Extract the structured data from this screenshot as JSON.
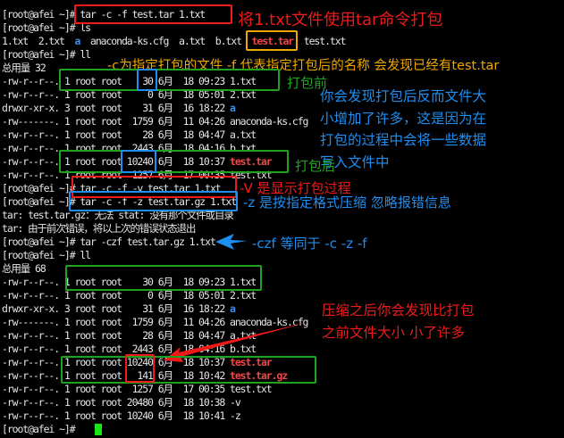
{
  "colors": {
    "background": "#000000",
    "text": "#e6e6e6",
    "directory": "#3d8ee8",
    "archive": "#f04848",
    "cursor": "#19e619",
    "annotation_red": "#f01a1a",
    "annotation_orange": "#f0a800",
    "annotation_green": "#1fa31f",
    "annotation_blue": "#1e8ef0"
  },
  "terminal": {
    "lines": [
      [
        {
          "t": "[root@afei ~]# tar -c -f test.tar 1.txt",
          "c": ""
        }
      ],
      [
        {
          "t": "[root@afei ~]# ls",
          "c": ""
        }
      ],
      [
        {
          "t": "1.txt  2.txt  ",
          "c": ""
        },
        {
          "t": "a",
          "c": "dir"
        },
        {
          "t": "  anaconda-ks.cfg  a.txt  b.txt  ",
          "c": ""
        },
        {
          "t": "test.tar",
          "c": "archive"
        },
        {
          "t": "  test.txt",
          "c": ""
        }
      ],
      [
        {
          "t": "[root@afei ~]# ll",
          "c": ""
        }
      ],
      [
        {
          "t": "总用量 32",
          "c": ""
        }
      ],
      [
        {
          "t": "-rw-r--r--. 1 root root    30 6月  18 09:23 1.txt",
          "c": ""
        }
      ],
      [
        {
          "t": "-rw-r--r--. 1 root root     0 6月  18 05:01 2.txt",
          "c": ""
        }
      ],
      [
        {
          "t": "drwxr-xr-x. 3 root root    31 6月  16 18:22 ",
          "c": ""
        },
        {
          "t": "a",
          "c": "dir"
        }
      ],
      [
        {
          "t": "-rw-------. 1 root root  1759 6月  11 04:26 anaconda-ks.cfg",
          "c": ""
        }
      ],
      [
        {
          "t": "-rw-r--r--. 1 root root    28 6月  18 04:47 a.txt",
          "c": ""
        }
      ],
      [
        {
          "t": "-rw-r--r--. 1 root root  2443 6月  18 04:16 b.txt",
          "c": ""
        }
      ],
      [
        {
          "t": "-rw-r--r--. 1 root root 10240 6月  18 10:37 ",
          "c": ""
        },
        {
          "t": "test.tar",
          "c": "archive"
        }
      ],
      [
        {
          "t": "-rw-r--r--. 1 root root  1257 6月  17 00:35 test.txt",
          "c": ""
        }
      ],
      [
        {
          "t": "[root@afei ~]# tar -c -f -v test.tar 1.txt",
          "c": ""
        }
      ],
      [
        {
          "t": "[root@afei ~]# tar -c -f -z test.tar.gz 1.txt",
          "c": ""
        }
      ],
      [
        {
          "t": "tar: test.tar.gz：无法 stat: 没有那个文件或目录",
          "c": ""
        }
      ],
      [
        {
          "t": "tar: 由于前次错误，将以上次的错误状态退出",
          "c": ""
        }
      ],
      [
        {
          "t": "[root@afei ~]# tar -czf test.tar.gz 1.txt",
          "c": ""
        }
      ],
      [
        {
          "t": "[root@afei ~]# ll",
          "c": ""
        }
      ],
      [
        {
          "t": "总用量 68",
          "c": ""
        }
      ],
      [
        {
          "t": "-rw-r--r--. 1 root root    30 6月  18 09:23 1.txt",
          "c": ""
        }
      ],
      [
        {
          "t": "-rw-r--r--. 1 root root     0 6月  18 05:01 2.txt",
          "c": ""
        }
      ],
      [
        {
          "t": "drwxr-xr-x. 3 root root    31 6月  16 18:22 ",
          "c": ""
        },
        {
          "t": "a",
          "c": "dir"
        }
      ],
      [
        {
          "t": "-rw-------. 1 root root  1759 6月  11 04:26 anaconda-ks.cfg",
          "c": ""
        }
      ],
      [
        {
          "t": "-rw-r--r--. 1 root root    28 6月  18 04:47 a.txt",
          "c": ""
        }
      ],
      [
        {
          "t": "-rw-r--r--. 1 root root  2443 6月  18 04:16 b.txt",
          "c": ""
        }
      ],
      [
        {
          "t": "-rw-r--r--. 1 root root 10240 6月  18 10:37 ",
          "c": ""
        },
        {
          "t": "test.tar",
          "c": "archive"
        }
      ],
      [
        {
          "t": "-rw-r--r--. 1 root root   141 6月  18 10:42 ",
          "c": ""
        },
        {
          "t": "test.tar.gz",
          "c": "archive"
        }
      ],
      [
        {
          "t": "-rw-r--r--. 1 root root  1257 6月  17 00:35 test.txt",
          "c": ""
        }
      ],
      [
        {
          "t": "-rw-r--r--. 1 root root 20480 6月  18 10:38 -v",
          "c": ""
        }
      ],
      [
        {
          "t": "-rw-r--r--. 1 root root 10240 6月  18 10:41 -z",
          "c": ""
        }
      ],
      [
        {
          "t": "[root@afei ~]# ",
          "c": ""
        }
      ]
    ]
  },
  "annotations": {
    "pack_cmd": "将1.txt文件使用tar命令打包",
    "flags_explain": "-c为指定打包的文件 -f 代表指定打包后的名称 会发现已经有test.tar",
    "before": "打包前",
    "after": "打包后",
    "size_note": [
      "你会发现打包后反而文件大",
      "小增加了许多，这是因为在",
      "打包的过程中会将一些数据",
      "写入文件中"
    ],
    "v_flag": "-V 是显示打包过程",
    "z_flag": "-z 是按指定格式压缩 忽略报错信息",
    "czf": "-czf  等同于 -c -z -f",
    "compress_note": [
      "压缩之后你会发现比打包",
      "之前文件大小 小了许多"
    ]
  }
}
